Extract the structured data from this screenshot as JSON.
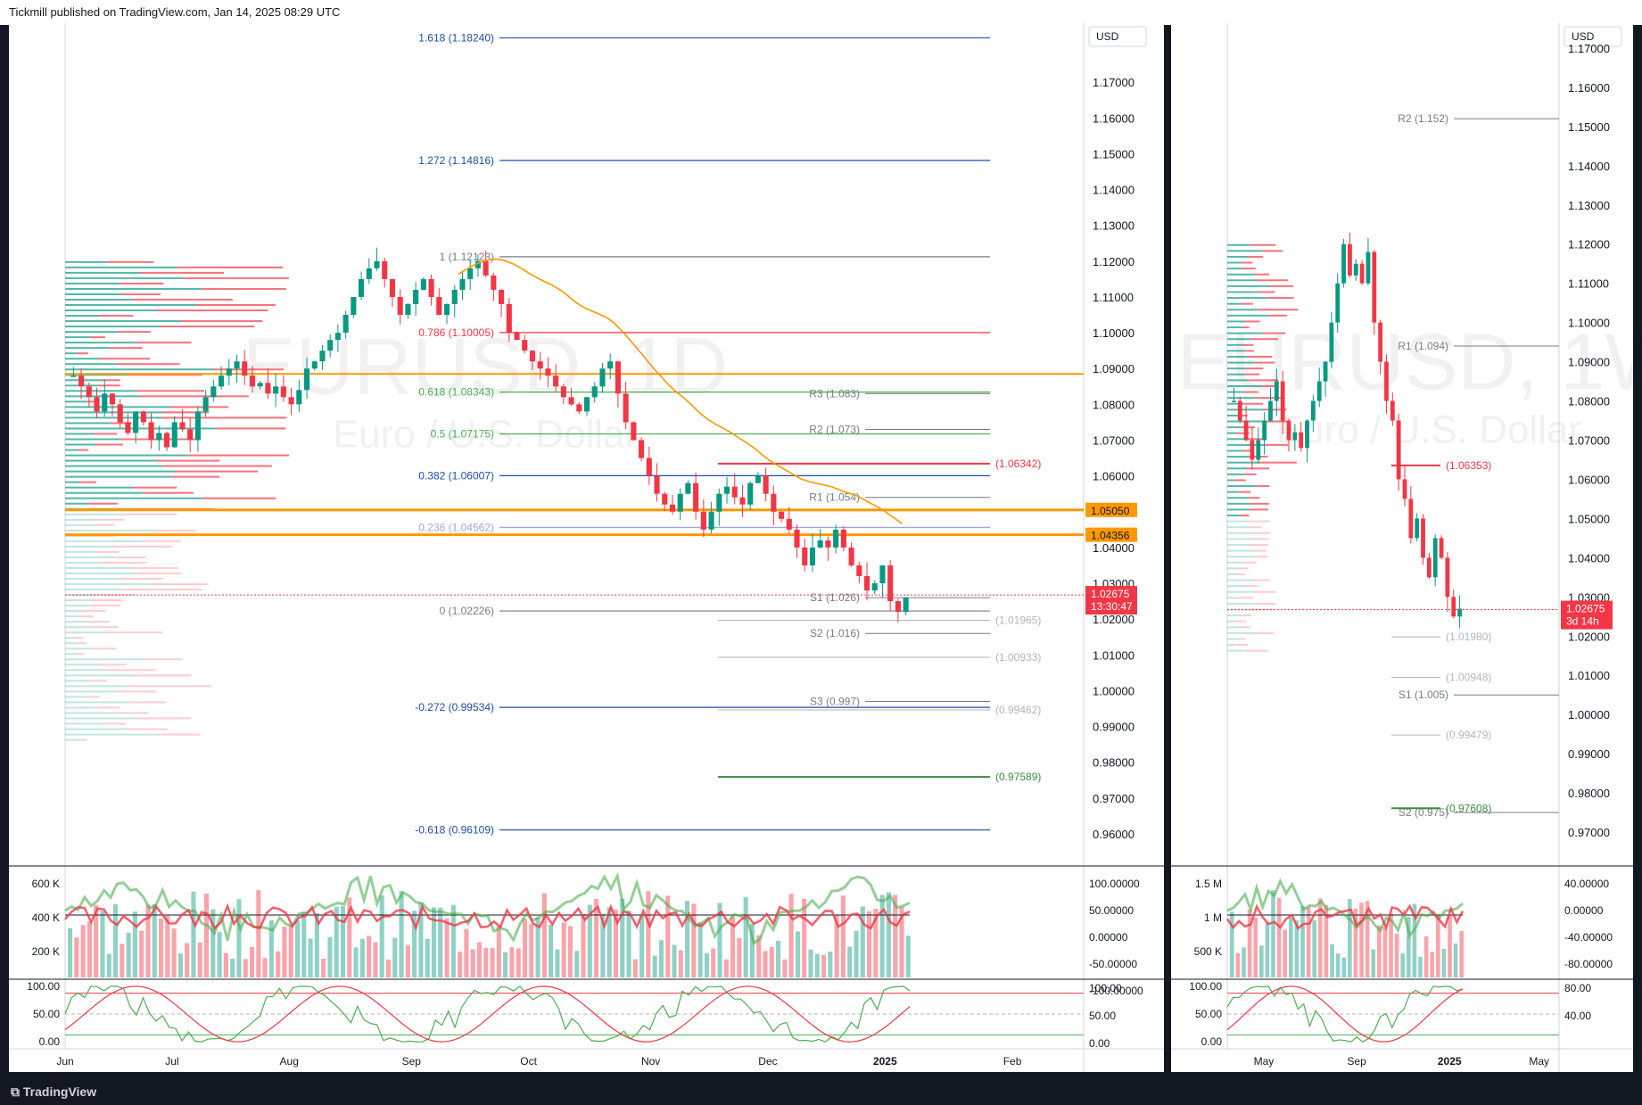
{
  "header": {
    "publisher": "Tickmill published on TradingView.com, Jan 14, 2025 08:29 UTC"
  },
  "footer": {
    "brand": "TradingView"
  },
  "colors": {
    "bull": "#089981",
    "bear": "#f23645",
    "fib": "#1e4fa8",
    "orange": "#ff9800",
    "bg": "#ffffff"
  },
  "chart_data": [
    {
      "type": "candlestick",
      "symbol_watermark": "EURUSD, 1D",
      "symbol_description": "Euro / U.S. Dollar",
      "currency": "USD",
      "timeframe": "1D",
      "ylim": [
        0.955,
        1.185
      ],
      "y_ticks": [
        "1.17000",
        "1.16000",
        "1.15000",
        "1.14000",
        "1.13000",
        "1.12000",
        "1.11000",
        "1.10000",
        "1.09000",
        "1.08000",
        "1.07000",
        "1.06000",
        "1.05000",
        "1.04000",
        "1.03000",
        "1.02000",
        "1.01000",
        "1.00000",
        "0.99000",
        "0.98000",
        "0.97000",
        "0.96000"
      ],
      "x_labels": [
        {
          "label": "Jun",
          "frac": 0.0
        },
        {
          "label": "Jul",
          "frac": 0.105
        },
        {
          "label": "Aug",
          "frac": 0.22
        },
        {
          "label": "Sep",
          "frac": 0.34
        },
        {
          "label": "Oct",
          "frac": 0.455
        },
        {
          "label": "Nov",
          "frac": 0.575
        },
        {
          "label": "Dec",
          "frac": 0.69
        },
        {
          "label": "2025",
          "frac": 0.805
        },
        {
          "label": "Feb",
          "frac": 0.93
        }
      ],
      "fib_levels": [
        {
          "label": "1.618 (1.18240)",
          "value": 1.1824
        },
        {
          "label": "1.272 (1.14816)",
          "value": 1.14816
        },
        {
          "label": "1 (1.12123)",
          "value": 1.12123
        },
        {
          "label": "0.786 (1.10005)",
          "value": 1.10005
        },
        {
          "label": "0.618 (1.08343)",
          "value": 1.08343
        },
        {
          "label": "0.5 (1.07175)",
          "value": 1.07175
        },
        {
          "label": "0.382 (1.06007)",
          "value": 1.06007
        },
        {
          "label": "0.236 (1.04562)",
          "value": 1.04562
        },
        {
          "label": "0 (1.02226)",
          "value": 1.02226
        },
        {
          "label": "-0.272 (0.99534)",
          "value": 0.99534
        },
        {
          "label": "-0.618 (0.96109)",
          "value": 0.96109
        }
      ],
      "pivots": [
        {
          "label": "R3 (1.083)",
          "value": 1.083
        },
        {
          "label": "R2 (1.073)",
          "value": 1.073
        },
        {
          "label": "R1 (1.054)",
          "value": 1.054
        },
        {
          "label": "S1 (1.026)",
          "value": 1.026
        },
        {
          "label": "S2 (1.016)",
          "value": 1.016
        },
        {
          "label": "S3 (0.997)",
          "value": 0.997
        }
      ],
      "levels": [
        {
          "label": "(1.06342)",
          "value": 1.06342
        },
        {
          "label": "(1.01965)",
          "value": 1.01965
        },
        {
          "label": "(1.00933)",
          "value": 1.00933
        },
        {
          "label": "(0.99462)",
          "value": 0.99462
        },
        {
          "label": "(0.97589)",
          "value": 0.97589
        }
      ],
      "support_resistance": [
        {
          "label": "1.05050",
          "value": 1.0505
        },
        {
          "label": "1.04356",
          "value": 1.04356
        }
      ],
      "horizontal_line": 1.0885,
      "last_price": {
        "label": "1.02675",
        "countdown": "13:30:47",
        "value": 1.02675
      },
      "closes": [
        1.088,
        1.085,
        1.082,
        1.078,
        1.083,
        1.08,
        1.075,
        1.072,
        1.078,
        1.075,
        1.07,
        1.072,
        1.068,
        1.075,
        1.073,
        1.07,
        1.078,
        1.082,
        1.085,
        1.088,
        1.09,
        1.092,
        1.088,
        1.085,
        1.086,
        1.083,
        1.085,
        1.082,
        1.08,
        1.084,
        1.09,
        1.092,
        1.095,
        1.098,
        1.1,
        1.105,
        1.11,
        1.115,
        1.118,
        1.12,
        1.115,
        1.11,
        1.105,
        1.108,
        1.112,
        1.115,
        1.11,
        1.105,
        1.108,
        1.112,
        1.115,
        1.118,
        1.12,
        1.116,
        1.112,
        1.108,
        1.1,
        1.098,
        1.095,
        1.092,
        1.09,
        1.088,
        1.085,
        1.082,
        1.08,
        1.078,
        1.082,
        1.085,
        1.09,
        1.092,
        1.083,
        1.075,
        1.07,
        1.065,
        1.06,
        1.055,
        1.052,
        1.05,
        1.055,
        1.058,
        1.05,
        1.045,
        1.05,
        1.055,
        1.057,
        1.054,
        1.052,
        1.058,
        1.06,
        1.055,
        1.05,
        1.048,
        1.045,
        1.04,
        1.035,
        1.04,
        1.042,
        1.04,
        1.045,
        1.04,
        1.035,
        1.032,
        1.028,
        1.03,
        1.035,
        1.025,
        1.022,
        1.026
      ],
      "indicator_volume": {
        "y_ticks": [
          "600 K",
          "400 K",
          "200 K"
        ],
        "right_ticks": [
          "100.00000",
          "50.00000",
          "0.00000",
          "-50.00000",
          "-100.00000"
        ]
      },
      "indicator_stoch": {
        "y_ticks": [
          "100.00",
          "50.00",
          "0.00"
        ],
        "right_ticks": [
          "100.00",
          "50.00",
          "0.00"
        ]
      }
    },
    {
      "type": "candlestick",
      "symbol_watermark": "EURUSD, 1W",
      "symbol_description": "Euro / U.S. Dollar",
      "currency": "USD",
      "timeframe": "1W",
      "ylim": [
        0.965,
        1.175
      ],
      "y_ticks": [
        "1.17000",
        "1.16000",
        "1.15000",
        "1.14000",
        "1.13000",
        "1.12000",
        "1.11000",
        "1.10000",
        "1.09000",
        "1.08000",
        "1.07000",
        "1.06000",
        "1.05000",
        "1.04000",
        "1.03000",
        "1.02000",
        "1.01000",
        "1.00000",
        "0.99000",
        "0.98000",
        "0.97000"
      ],
      "x_labels": [
        {
          "label": "May",
          "frac": 0.11
        },
        {
          "label": "Sep",
          "frac": 0.39
        },
        {
          "label": "2025",
          "frac": 0.67
        },
        {
          "label": "May",
          "frac": 0.94
        }
      ],
      "pivots": [
        {
          "label": "R2 (1.152)",
          "value": 1.152
        },
        {
          "label": "R1 (1.094)",
          "value": 1.094
        },
        {
          "label": "S1 (1.005)",
          "value": 1.005
        },
        {
          "label": "S2 (0.975)",
          "value": 0.975
        }
      ],
      "levels": [
        {
          "label": "(1.06353)",
          "value": 1.06353
        },
        {
          "label": "(1.01980)",
          "value": 1.0198
        },
        {
          "label": "(1.00948)",
          "value": 1.00948
        },
        {
          "label": "(0.99479)",
          "value": 0.99479
        },
        {
          "label": "(0.97608)",
          "value": 0.97608
        }
      ],
      "last_price": {
        "label": "1.02675",
        "countdown": "3d 14h",
        "value": 1.02675
      },
      "closes": [
        1.08,
        1.075,
        1.07,
        1.065,
        1.07,
        1.075,
        1.08,
        1.085,
        1.075,
        1.07,
        1.072,
        1.068,
        1.075,
        1.08,
        1.085,
        1.09,
        1.1,
        1.11,
        1.12,
        1.112,
        1.115,
        1.11,
        1.118,
        1.1,
        1.09,
        1.08,
        1.075,
        1.06,
        1.055,
        1.045,
        1.05,
        1.04,
        1.035,
        1.045,
        1.04,
        1.03,
        1.025,
        1.027
      ],
      "indicator_volume": {
        "y_ticks": [
          "1.5 M",
          "1 M",
          "500 K"
        ],
        "right_ticks": [
          "40.00000",
          "0.00000",
          "-40.00000",
          "-80.00000"
        ]
      },
      "indicator_stoch": {
        "y_ticks": [
          "100.00",
          "50.00",
          "0.00"
        ],
        "right_ticks": [
          "80.00",
          "40.00"
        ]
      }
    }
  ]
}
